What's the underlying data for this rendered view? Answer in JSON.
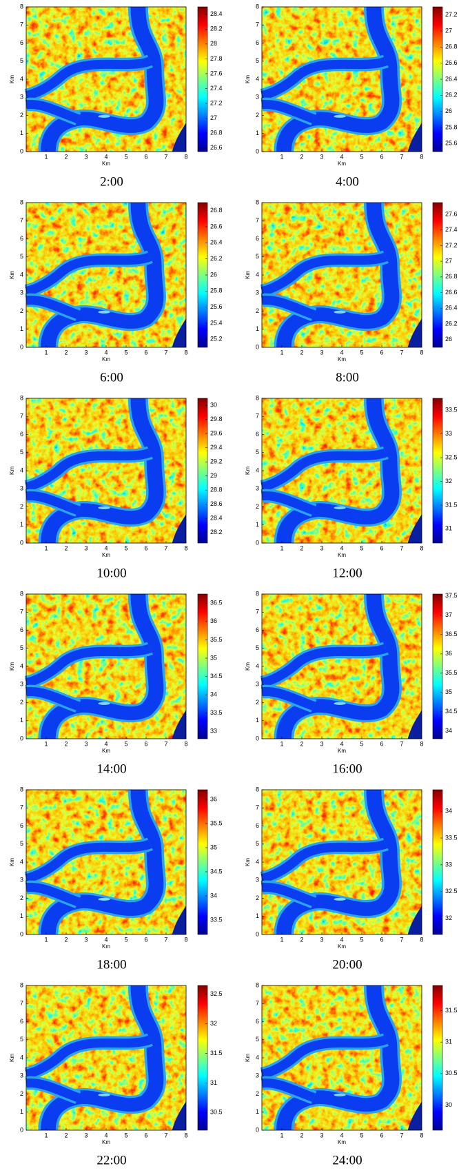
{
  "chart_data": [
    {
      "type": "heatmap",
      "title": "2:00",
      "xlabel": "Km",
      "ylabel": "Km",
      "xlim": [
        0,
        8
      ],
      "xticks": [
        1,
        2,
        3,
        4,
        5,
        6,
        7,
        8
      ],
      "ylim": [
        0,
        8
      ],
      "yticks": [
        0,
        1,
        2,
        3,
        4,
        5,
        6,
        7,
        8
      ],
      "colormap": "jet",
      "clim": [
        26.55,
        28.5
      ],
      "cticks": [
        26.6,
        26.8,
        27,
        27.2,
        27.4,
        27.6,
        27.8,
        28,
        28.2,
        28.4
      ]
    },
    {
      "type": "heatmap",
      "title": "4:00",
      "xlabel": "Km",
      "ylabel": "Km",
      "xlim": [
        0,
        8
      ],
      "xticks": [
        1,
        2,
        3,
        4,
        5,
        6,
        7,
        8
      ],
      "ylim": [
        0,
        8
      ],
      "yticks": [
        0,
        1,
        2,
        3,
        4,
        5,
        6,
        7,
        8
      ],
      "colormap": "jet",
      "clim": [
        25.5,
        27.3
      ],
      "cticks": [
        25.6,
        25.8,
        26,
        26.2,
        26.4,
        26.6,
        26.8,
        27,
        27.2
      ]
    },
    {
      "type": "heatmap",
      "title": "6:00",
      "xlabel": "Km",
      "ylabel": "Km",
      "xlim": [
        0,
        8
      ],
      "xticks": [
        1,
        2,
        3,
        4,
        5,
        6,
        7,
        8
      ],
      "ylim": [
        0,
        8
      ],
      "yticks": [
        0,
        1,
        2,
        3,
        4,
        5,
        6,
        7,
        8
      ],
      "colormap": "jet",
      "clim": [
        25.1,
        26.9
      ],
      "cticks": [
        25.2,
        25.4,
        25.6,
        25.8,
        26,
        26.2,
        26.4,
        26.6,
        26.8
      ]
    },
    {
      "type": "heatmap",
      "title": "8:00",
      "xlabel": "Km",
      "ylabel": "Km",
      "xlim": [
        0,
        8
      ],
      "xticks": [
        1,
        2,
        3,
        4,
        5,
        6,
        7,
        8
      ],
      "ylim": [
        0,
        8
      ],
      "yticks": [
        0,
        1,
        2,
        3,
        4,
        5,
        6,
        7,
        8
      ],
      "colormap": "jet",
      "clim": [
        25.9,
        27.75
      ],
      "cticks": [
        26,
        26.2,
        26.4,
        26.6,
        26.8,
        27,
        27.2,
        27.4,
        27.6
      ]
    },
    {
      "type": "heatmap",
      "title": "10:00",
      "xlabel": "Km",
      "ylabel": "Km",
      "xlim": [
        0,
        8
      ],
      "xticks": [
        1,
        2,
        3,
        4,
        5,
        6,
        7,
        8
      ],
      "ylim": [
        0,
        8
      ],
      "yticks": [
        0,
        1,
        2,
        3,
        4,
        5,
        6,
        7,
        8
      ],
      "colormap": "jet",
      "clim": [
        28.05,
        30.1
      ],
      "cticks": [
        28.2,
        28.4,
        28.6,
        28.8,
        29,
        29.2,
        29.4,
        29.6,
        29.8,
        30
      ]
    },
    {
      "type": "heatmap",
      "title": "12:00",
      "xlabel": "Km",
      "ylabel": "Km",
      "xlim": [
        0,
        8
      ],
      "xticks": [
        1,
        2,
        3,
        4,
        5,
        6,
        7,
        8
      ],
      "ylim": [
        0,
        8
      ],
      "yticks": [
        0,
        1,
        2,
        3,
        4,
        5,
        6,
        7,
        8
      ],
      "colormap": "jet",
      "clim": [
        30.7,
        33.75
      ],
      "cticks": [
        31,
        31.5,
        32,
        32.5,
        33,
        33.5
      ]
    },
    {
      "type": "heatmap",
      "title": "14:00",
      "xlabel": "Km",
      "ylabel": "Km",
      "xlim": [
        0,
        8
      ],
      "xticks": [
        1,
        2,
        3,
        4,
        5,
        6,
        7,
        8
      ],
      "ylim": [
        0,
        8
      ],
      "yticks": [
        0,
        1,
        2,
        3,
        4,
        5,
        6,
        7,
        8
      ],
      "colormap": "jet",
      "clim": [
        32.8,
        36.75
      ],
      "cticks": [
        33,
        33.5,
        34,
        34.5,
        35,
        35.5,
        36,
        36.5
      ]
    },
    {
      "type": "heatmap",
      "title": "16:00",
      "xlabel": "Km",
      "ylabel": "Km",
      "xlim": [
        0,
        8
      ],
      "xticks": [
        1,
        2,
        3,
        4,
        5,
        6,
        7,
        8
      ],
      "ylim": [
        0,
        8
      ],
      "yticks": [
        0,
        1,
        2,
        3,
        4,
        5,
        6,
        7,
        8
      ],
      "colormap": "jet",
      "clim": [
        33.8,
        37.55
      ],
      "cticks": [
        34,
        34.5,
        35,
        35.5,
        36,
        36.5,
        37,
        37.5
      ]
    },
    {
      "type": "heatmap",
      "title": "18:00",
      "xlabel": "Km",
      "ylabel": "Km",
      "xlim": [
        0,
        8
      ],
      "xticks": [
        1,
        2,
        3,
        4,
        5,
        6,
        7,
        8
      ],
      "ylim": [
        0,
        8
      ],
      "yticks": [
        0,
        1,
        2,
        3,
        4,
        5,
        6,
        7,
        8
      ],
      "colormap": "jet",
      "clim": [
        33.2,
        36.2
      ],
      "cticks": [
        33.5,
        34,
        34.5,
        35,
        35.5,
        36
      ]
    },
    {
      "type": "heatmap",
      "title": "20:00",
      "xlabel": "Km",
      "ylabel": "Km",
      "xlim": [
        0,
        8
      ],
      "xticks": [
        1,
        2,
        3,
        4,
        5,
        6,
        7,
        8
      ],
      "ylim": [
        0,
        8
      ],
      "yticks": [
        0,
        1,
        2,
        3,
        4,
        5,
        6,
        7,
        8
      ],
      "colormap": "jet",
      "clim": [
        31.7,
        34.4
      ],
      "cticks": [
        32,
        32.5,
        33,
        33.5,
        34
      ]
    },
    {
      "type": "heatmap",
      "title": "22:00",
      "xlabel": "Km",
      "ylabel": "Km",
      "xlim": [
        0,
        8
      ],
      "xticks": [
        1,
        2,
        3,
        4,
        5,
        6,
        7,
        8
      ],
      "ylim": [
        0,
        8
      ],
      "yticks": [
        0,
        1,
        2,
        3,
        4,
        5,
        6,
        7,
        8
      ],
      "colormap": "jet",
      "clim": [
        30.2,
        32.65
      ],
      "cticks": [
        30.5,
        31,
        31.5,
        32,
        32.5
      ]
    },
    {
      "type": "heatmap",
      "title": "24:00",
      "xlabel": "Km",
      "ylabel": "Km",
      "xlim": [
        0,
        8
      ],
      "xticks": [
        1,
        2,
        3,
        4,
        5,
        6,
        7,
        8
      ],
      "ylim": [
        0,
        8
      ],
      "yticks": [
        0,
        1,
        2,
        3,
        4,
        5,
        6,
        7,
        8
      ],
      "colormap": "jet",
      "clim": [
        29.6,
        31.9
      ],
      "cticks": [
        30,
        30.5,
        31,
        31.5
      ]
    }
  ]
}
